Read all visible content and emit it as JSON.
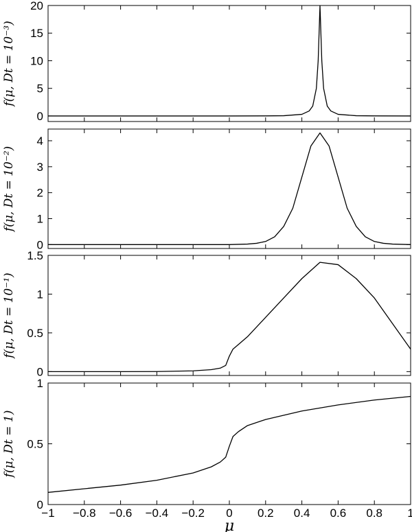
{
  "chart_data": [
    {
      "type": "line",
      "ylabel": "f(μ, Dt = 10⁻³)",
      "xlim": [
        -1,
        1
      ],
      "ylim": [
        -1,
        20
      ],
      "yticks": [
        0,
        5,
        10,
        15,
        20
      ],
      "ytick_labels": [
        "0",
        "5",
        "10",
        "15",
        "20"
      ],
      "series": [
        {
          "x": [
            -1,
            -0.5,
            0,
            0.2,
            0.3,
            0.4,
            0.44,
            0.46,
            0.48,
            0.49,
            0.5,
            0.51,
            0.52,
            0.54,
            0.56,
            0.6,
            0.7,
            0.8,
            1
          ],
          "y": [
            0,
            0,
            0,
            0.02,
            0.05,
            0.3,
            0.9,
            1.8,
            5.0,
            10.0,
            20.0,
            10.0,
            5.0,
            1.8,
            0.9,
            0.3,
            0.05,
            0.02,
            0
          ]
        }
      ]
    },
    {
      "type": "line",
      "ylabel": "f(μ, Dt = 10⁻²)",
      "xlim": [
        -1,
        1
      ],
      "ylim": [
        -0.15,
        4.45
      ],
      "yticks": [
        0,
        1,
        2,
        3,
        4
      ],
      "ytick_labels": [
        "0",
        "1",
        "2",
        "3",
        "4"
      ],
      "series": [
        {
          "x": [
            -1,
            0,
            0.1,
            0.15,
            0.2,
            0.25,
            0.3,
            0.35,
            0.4,
            0.45,
            0.5,
            0.55,
            0.6,
            0.65,
            0.7,
            0.75,
            0.8,
            0.85,
            0.9,
            1
          ],
          "y": [
            0,
            0.001,
            0.02,
            0.05,
            0.12,
            0.3,
            0.7,
            1.4,
            2.6,
            3.8,
            4.3,
            3.8,
            2.6,
            1.4,
            0.7,
            0.3,
            0.12,
            0.05,
            0.02,
            0
          ]
        }
      ]
    },
    {
      "type": "line",
      "ylabel": "f(μ, Dt = 10⁻¹)",
      "xlim": [
        -1,
        1
      ],
      "ylim": [
        -0.05,
        1.5
      ],
      "yticks": [
        0,
        0.5,
        1,
        1.5
      ],
      "ytick_labels": [
        "0",
        "0.5",
        "1",
        "1.5"
      ],
      "series": [
        {
          "x": [
            -1,
            -0.6,
            -0.4,
            -0.2,
            -0.1,
            -0.05,
            -0.02,
            0,
            0.02,
            0.05,
            0.1,
            0.2,
            0.3,
            0.4,
            0.5,
            0.6,
            0.7,
            0.8,
            0.9,
            1
          ],
          "y": [
            0,
            0,
            0.001,
            0.01,
            0.025,
            0.045,
            0.08,
            0.2,
            0.29,
            0.35,
            0.45,
            0.7,
            0.95,
            1.2,
            1.41,
            1.38,
            1.2,
            0.95,
            0.62,
            0.29
          ]
        }
      ]
    },
    {
      "type": "line",
      "ylabel": "f(μ, Dt = 1)",
      "xlabel": "μ",
      "xlim": [
        -1,
        1
      ],
      "ylim": [
        0,
        1
      ],
      "yticks": [
        0,
        0.5,
        1
      ],
      "ytick_labels": [
        "0",
        "0.5",
        "1"
      ],
      "xticks": [
        -1,
        -0.8,
        -0.6,
        -0.4,
        -0.2,
        0,
        0.2,
        0.4,
        0.6,
        0.8,
        1
      ],
      "xtick_labels": [
        "−1",
        "−0.8",
        "−0.6",
        "−0.4",
        "−0.2",
        "0",
        "0.2",
        "0.4",
        "0.6",
        "0.8",
        "1"
      ],
      "series": [
        {
          "x": [
            -1,
            -0.8,
            -0.6,
            -0.4,
            -0.2,
            -0.1,
            -0.05,
            -0.02,
            0,
            0.02,
            0.05,
            0.1,
            0.2,
            0.4,
            0.6,
            0.8,
            1
          ],
          "y": [
            0.1,
            0.13,
            0.16,
            0.2,
            0.26,
            0.31,
            0.35,
            0.39,
            0.48,
            0.56,
            0.6,
            0.65,
            0.7,
            0.77,
            0.82,
            0.86,
            0.89
          ]
        }
      ]
    }
  ]
}
